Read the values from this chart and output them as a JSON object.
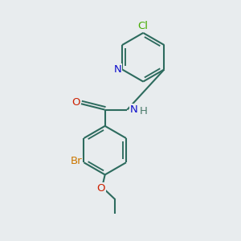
{
  "bg_color": "#e8ecee",
  "bond_color": "#2d6b5e",
  "bond_width": 1.5,
  "dbo": 0.12,
  "atom_colors": {
    "C": "#2d6b5e",
    "N": "#1010cc",
    "O": "#cc2000",
    "Cl": "#44aa00",
    "Br": "#cc7700",
    "H": "#4a7a6a"
  },
  "font_size": 9.5,
  "xlim": [
    0,
    10
  ],
  "ylim": [
    0,
    10
  ]
}
